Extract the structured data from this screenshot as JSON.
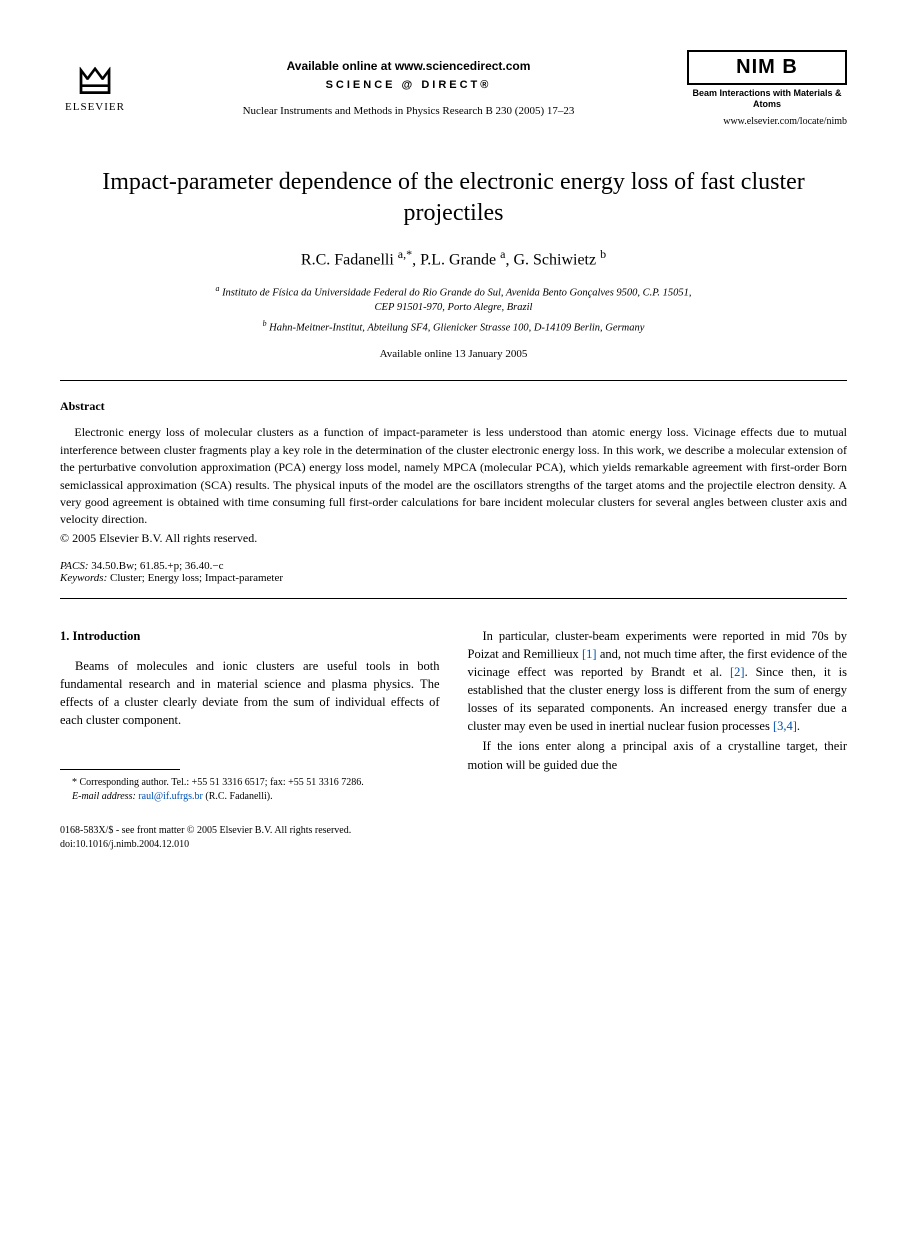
{
  "header": {
    "publisher": "ELSEVIER",
    "available_online": "Available online at www.sciencedirect.com",
    "science_direct": "SCIENCE @ DIRECT®",
    "journal_ref": "Nuclear Instruments and Methods in Physics Research B 230 (2005) 17–23",
    "nimb": "NIM B",
    "nimb_sub": "Beam Interactions with Materials & Atoms",
    "locate_url": "www.elsevier.com/locate/nimb"
  },
  "title": "Impact-parameter dependence of the electronic energy loss of fast cluster projectiles",
  "authors_line": "R.C. Fadanelli a,*, P.L. Grande a, G. Schiwietz b",
  "affiliations": {
    "a": "a Instituto de Física da Universidade Federal do Rio Grande do Sul, Avenida Bento Gonçalves 9500, C.P. 15051, CEP 91501-970, Porto Alegre, Brazil",
    "b": "b Hahn-Meitner-Institut, Abteilung SF4, Glienicker Strasse 100, D-14109 Berlin, Germany"
  },
  "available_date": "Available online 13 January 2005",
  "abstract": {
    "heading": "Abstract",
    "body": "Electronic energy loss of molecular clusters as a function of impact-parameter is less understood than atomic energy loss. Vicinage effects due to mutual interference between cluster fragments play a key role in the determination of the cluster electronic energy loss. In this work, we describe a molecular extension of the perturbative convolution approximation (PCA) energy loss model, namely MPCA (molecular PCA), which yields remarkable agreement with first-order Born semiclassical approximation (SCA) results. The physical inputs of the model are the oscillators strengths of the target atoms and the projectile electron density. A very good agreement is obtained with time consuming full first-order calculations for bare incident molecular clusters for several angles between cluster axis and velocity direction.",
    "copyright": "© 2005 Elsevier B.V. All rights reserved."
  },
  "pacs": {
    "label": "PACS:",
    "values": "34.50.Bw; 61.85.+p; 36.40.−c"
  },
  "keywords": {
    "label": "Keywords:",
    "values": "Cluster; Energy loss; Impact-parameter"
  },
  "section1": {
    "heading": "1. Introduction",
    "left_p1": "Beams of molecules and ionic clusters are useful tools in both fundamental research and in material science and plasma physics. The effects of a cluster clearly deviate from the sum of individual effects of each cluster component.",
    "right_p1_a": "In particular, cluster-beam experiments were reported in mid 70s by Poizat and Remillieux ",
    "ref1": "[1]",
    "right_p1_b": " and, not much time after, the first evidence of the vicinage effect was reported by Brandt et al. ",
    "ref2": "[2]",
    "right_p1_c": ". Since then, it is established that the cluster energy loss is different from the sum of energy losses of its separated components. An increased energy transfer due a cluster may even be used in inertial nuclear fusion processes ",
    "ref34": "[3,4]",
    "right_p1_d": ".",
    "right_p2": "If the ions enter along a principal axis of a crystalline target, their motion will be guided due the"
  },
  "footnote": {
    "corresponding": "* Corresponding author. Tel.: +55 51 3316 6517; fax: +55 51 3316 7286.",
    "email_label": "E-mail address:",
    "email": "raul@if.ufrgs.br",
    "email_who": " (R.C. Fadanelli)."
  },
  "doi": {
    "line1": "0168-583X/$ - see front matter © 2005 Elsevier B.V. All rights reserved.",
    "line2": "doi:10.1016/j.nimb.2004.12.010"
  }
}
